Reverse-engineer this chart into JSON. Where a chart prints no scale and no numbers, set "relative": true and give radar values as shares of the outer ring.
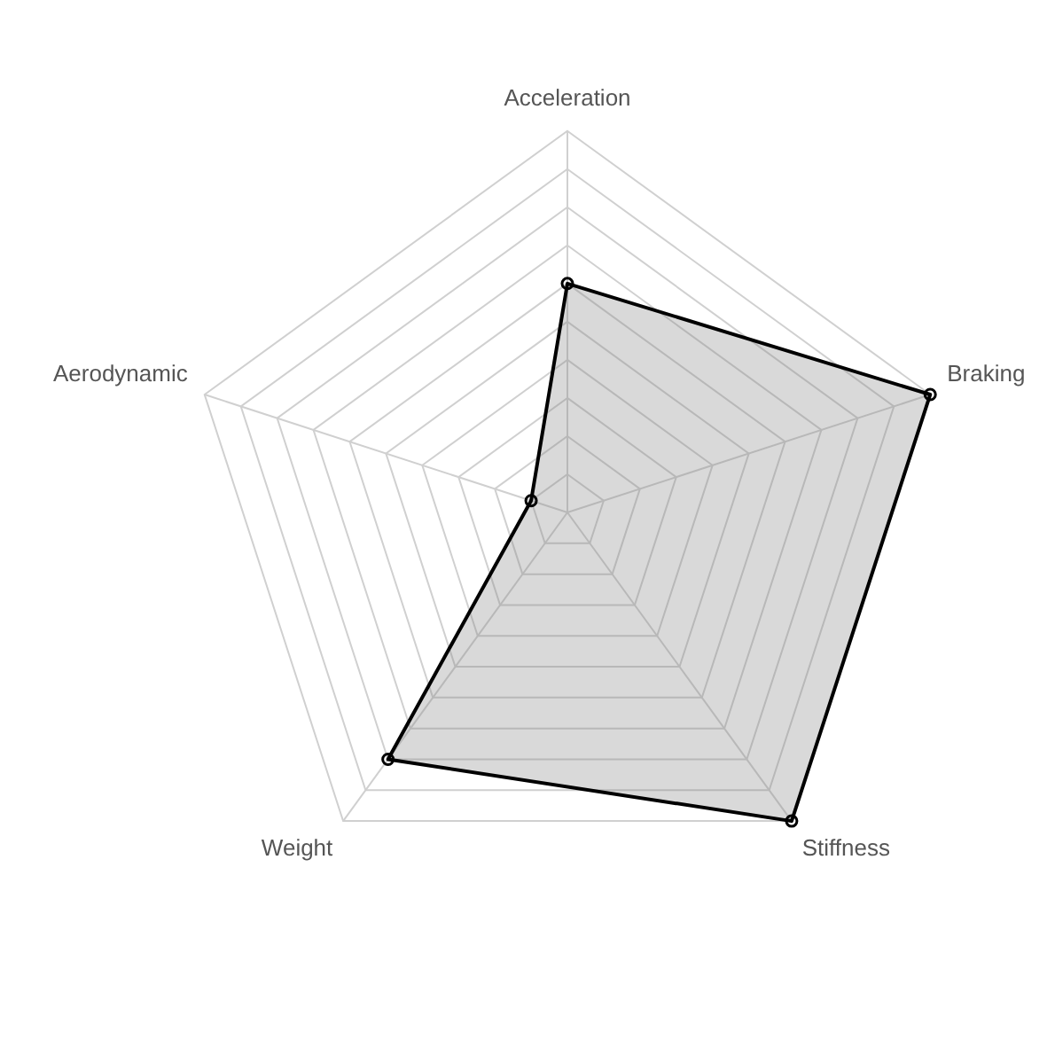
{
  "chart_data": {
    "type": "radar",
    "relative": true,
    "categories": [
      "Acceleration",
      "Braking",
      "Stiffness",
      "Weight",
      "Aerodynamic"
    ],
    "series": [
      {
        "color": "#000000",
        "values": [
          0.6,
          1.0,
          1.0,
          0.8,
          0.1
        ]
      }
    ],
    "marker": "circle",
    "grid": true,
    "legend": false
  }
}
